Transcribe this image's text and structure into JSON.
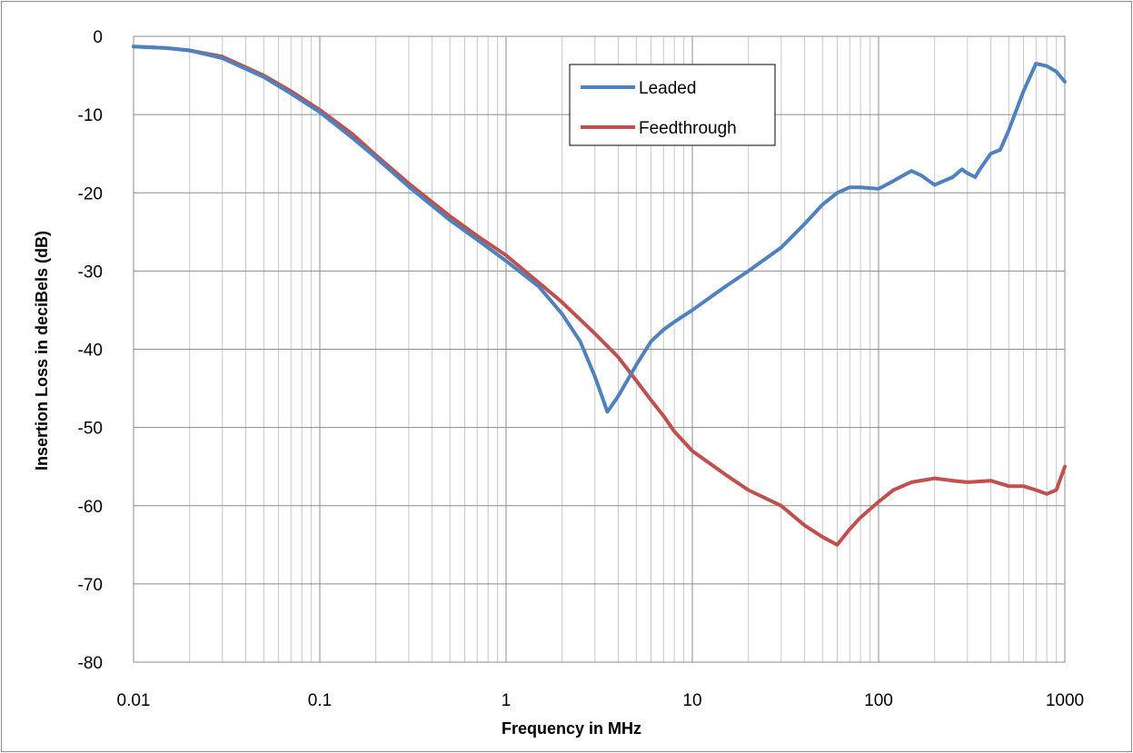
{
  "chart_data": {
    "type": "line",
    "title": "",
    "xlabel": "Frequency in MHz",
    "ylabel": "Insertion Loss in deciBels (dB)",
    "x_scale": "log",
    "xlim": [
      0.01,
      1000
    ],
    "ylim": [
      -80,
      0
    ],
    "x_tick_labels": [
      "0.01",
      "0.1",
      "1",
      "10",
      "100",
      "1000"
    ],
    "y_tick_labels": [
      "0",
      "-10",
      "-20",
      "-30",
      "-40",
      "-50",
      "-60",
      "-70",
      "-80"
    ],
    "grid": true,
    "legend_position": "top-center",
    "series": [
      {
        "name": "Leaded",
        "color": "#4f81bd",
        "x": [
          0.01,
          0.015,
          0.02,
          0.03,
          0.05,
          0.07,
          0.1,
          0.15,
          0.2,
          0.3,
          0.5,
          0.7,
          1,
          1.5,
          2,
          2.5,
          3,
          3.5,
          4,
          5,
          6,
          7,
          8,
          10,
          15,
          20,
          30,
          40,
          50,
          60,
          70,
          80,
          100,
          120,
          150,
          170,
          200,
          250,
          280,
          300,
          330,
          350,
          400,
          450,
          500,
          600,
          700,
          800,
          900,
          1000
        ],
        "y": [
          -1.3,
          -1.5,
          -1.8,
          -2.8,
          -5.2,
          -7.3,
          -9.7,
          -13.0,
          -15.5,
          -19.2,
          -23.5,
          -26.0,
          -28.7,
          -32.0,
          -35.5,
          -39.0,
          -43.5,
          -48.0,
          -46.0,
          -42.0,
          -39.0,
          -37.5,
          -36.5,
          -35.0,
          -32.0,
          -30.0,
          -27.0,
          -24.0,
          -21.5,
          -20.0,
          -19.3,
          -19.3,
          -19.5,
          -18.5,
          -17.2,
          -17.8,
          -19.0,
          -18.0,
          -17.0,
          -17.5,
          -18.0,
          -17.0,
          -15.0,
          -14.5,
          -12.0,
          -7.0,
          -3.5,
          -3.8,
          -4.5,
          -5.8
        ]
      },
      {
        "name": "Feedthrough",
        "color": "#c0504d",
        "x": [
          0.01,
          0.015,
          0.02,
          0.03,
          0.05,
          0.07,
          0.1,
          0.15,
          0.2,
          0.3,
          0.5,
          0.7,
          1,
          1.5,
          2,
          3,
          4,
          5,
          6,
          7,
          8,
          10,
          15,
          20,
          30,
          40,
          50,
          60,
          70,
          80,
          100,
          120,
          150,
          200,
          250,
          300,
          400,
          500,
          600,
          700,
          800,
          900,
          1000
        ],
        "y": [
          -1.3,
          -1.5,
          -1.8,
          -2.6,
          -5.0,
          -7.0,
          -9.4,
          -12.5,
          -15.2,
          -18.8,
          -23.0,
          -25.5,
          -28.0,
          -31.5,
          -34.0,
          -38.0,
          -41.0,
          -44.0,
          -46.5,
          -48.5,
          -50.5,
          -53.0,
          -56.0,
          -58.0,
          -60.0,
          -62.5,
          -64.0,
          -65.0,
          -63.0,
          -61.5,
          -59.5,
          -58.0,
          -57.0,
          -56.5,
          -56.8,
          -57.0,
          -56.8,
          -57.5,
          -57.5,
          -58.0,
          -58.5,
          -58.0,
          -55.0
        ]
      }
    ]
  }
}
